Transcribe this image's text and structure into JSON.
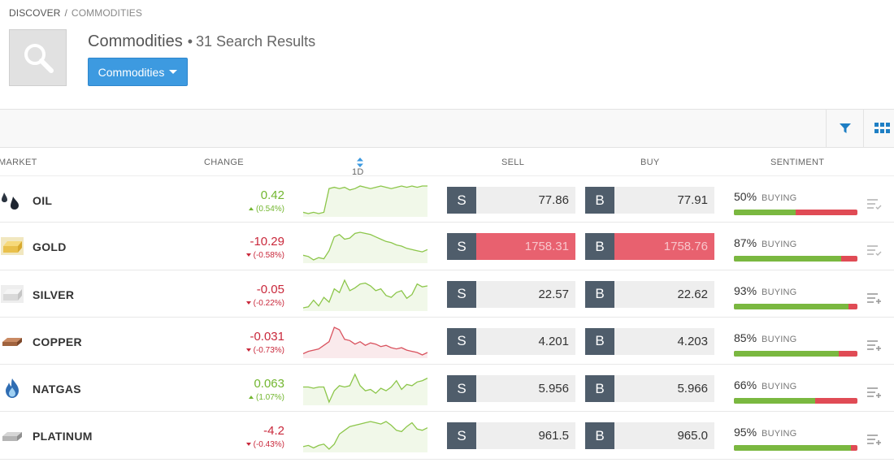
{
  "breadcrumb": {
    "root": "DISCOVER",
    "separator": "/",
    "current": "COMMODITIES"
  },
  "header": {
    "title": "Commodities",
    "results_dot": "•",
    "results": "31 Search Results"
  },
  "dropdown": {
    "label": "Commodities"
  },
  "columns": {
    "market": "MARKET",
    "change": "CHANGE",
    "period": "1D",
    "sell": "SELL",
    "buy": "BUY",
    "sentiment": "SENTIMENT"
  },
  "trade_labels": {
    "sell": "S",
    "buy": "B"
  },
  "colors": {
    "accent": "#3d9ae0",
    "positive": "#72b62f",
    "negative": "#c9283b",
    "trade_button": "#4f5d6b",
    "highlight": "#e8616f",
    "sentiment_buy": "#7ab840",
    "sentiment_sell": "#e04b55"
  },
  "markets": [
    {
      "name": "OIL",
      "icon": "oil-drops-icon",
      "change": "0.42",
      "change_pct": "(0.54%)",
      "direction": "up",
      "sell": "77.86",
      "buy": "77.91",
      "highlight": false,
      "sentiment_pct": "50%",
      "sentiment_fraction": 0.5,
      "sentiment_word": "BUYING",
      "spark": [
        2,
        1,
        2,
        1,
        2,
        20,
        21,
        20,
        21,
        19,
        20,
        22,
        21,
        20,
        21,
        22,
        21,
        20,
        21,
        22,
        21,
        22,
        21,
        22,
        22
      ],
      "menu_icon": "list-check-icon"
    },
    {
      "name": "GOLD",
      "icon": "gold-bar-icon",
      "change": "-10.29",
      "change_pct": "(-0.58%)",
      "direction": "down",
      "sell": "1758.31",
      "buy": "1758.76",
      "highlight": true,
      "sentiment_pct": "87%",
      "sentiment_fraction": 0.87,
      "sentiment_word": "BUYING",
      "spark": [
        6,
        5,
        2,
        4,
        3,
        10,
        22,
        24,
        20,
        21,
        25,
        26,
        25,
        24,
        22,
        20,
        18,
        17,
        15,
        14,
        12,
        11,
        10,
        9,
        11
      ],
      "menu_icon": "list-check-icon"
    },
    {
      "name": "SILVER",
      "icon": "silver-bar-icon",
      "change": "-0.05",
      "change_pct": "(-0.22%)",
      "direction": "down",
      "sell": "22.57",
      "buy": "22.62",
      "highlight": false,
      "sentiment_pct": "93%",
      "sentiment_fraction": 0.93,
      "sentiment_word": "BUYING",
      "spark": [
        0,
        1,
        8,
        2,
        11,
        6,
        20,
        16,
        29,
        18,
        21,
        25,
        26,
        23,
        18,
        20,
        13,
        11,
        16,
        18,
        10,
        14,
        25,
        22,
        23
      ],
      "menu_icon": "list-add-icon"
    },
    {
      "name": "COPPER",
      "icon": "copper-bar-icon",
      "change": "-0.031",
      "change_pct": "(-0.73%)",
      "direction": "down",
      "sell": "4.201",
      "buy": "4.203",
      "highlight": false,
      "sentiment_pct": "85%",
      "sentiment_fraction": 0.85,
      "sentiment_word": "BUYING",
      "spark": [
        6,
        8,
        9,
        10,
        13,
        16,
        28,
        26,
        18,
        17,
        14,
        16,
        13,
        15,
        14,
        12,
        13,
        11,
        10,
        11,
        9,
        8,
        7,
        5,
        7
      ],
      "menu_icon": "list-add-icon"
    },
    {
      "name": "NATGAS",
      "icon": "gas-flame-icon",
      "change": "0.063",
      "change_pct": "(1.07%)",
      "direction": "up",
      "sell": "5.956",
      "buy": "5.966",
      "highlight": false,
      "sentiment_pct": "66%",
      "sentiment_fraction": 0.66,
      "sentiment_word": "BUYING",
      "spark": [
        16,
        16,
        15,
        16,
        16,
        4,
        13,
        17,
        16,
        17,
        26,
        17,
        13,
        14,
        11,
        15,
        13,
        16,
        21,
        14,
        18,
        17,
        20,
        21,
        23
      ],
      "menu_icon": "list-add-icon"
    },
    {
      "name": "PLATINUM",
      "icon": "platinum-bar-icon",
      "change": "-4.2",
      "change_pct": "(-0.43%)",
      "direction": "down",
      "sell": "961.5",
      "buy": "965.0",
      "highlight": false,
      "sentiment_pct": "95%",
      "sentiment_fraction": 0.95,
      "sentiment_word": "BUYING",
      "spark": [
        4,
        5,
        3,
        5,
        6,
        2,
        6,
        14,
        17,
        20,
        21,
        22,
        23,
        24,
        23,
        22,
        24,
        21,
        17,
        16,
        20,
        23,
        18,
        17,
        19
      ],
      "menu_icon": "list-add-icon"
    }
  ]
}
